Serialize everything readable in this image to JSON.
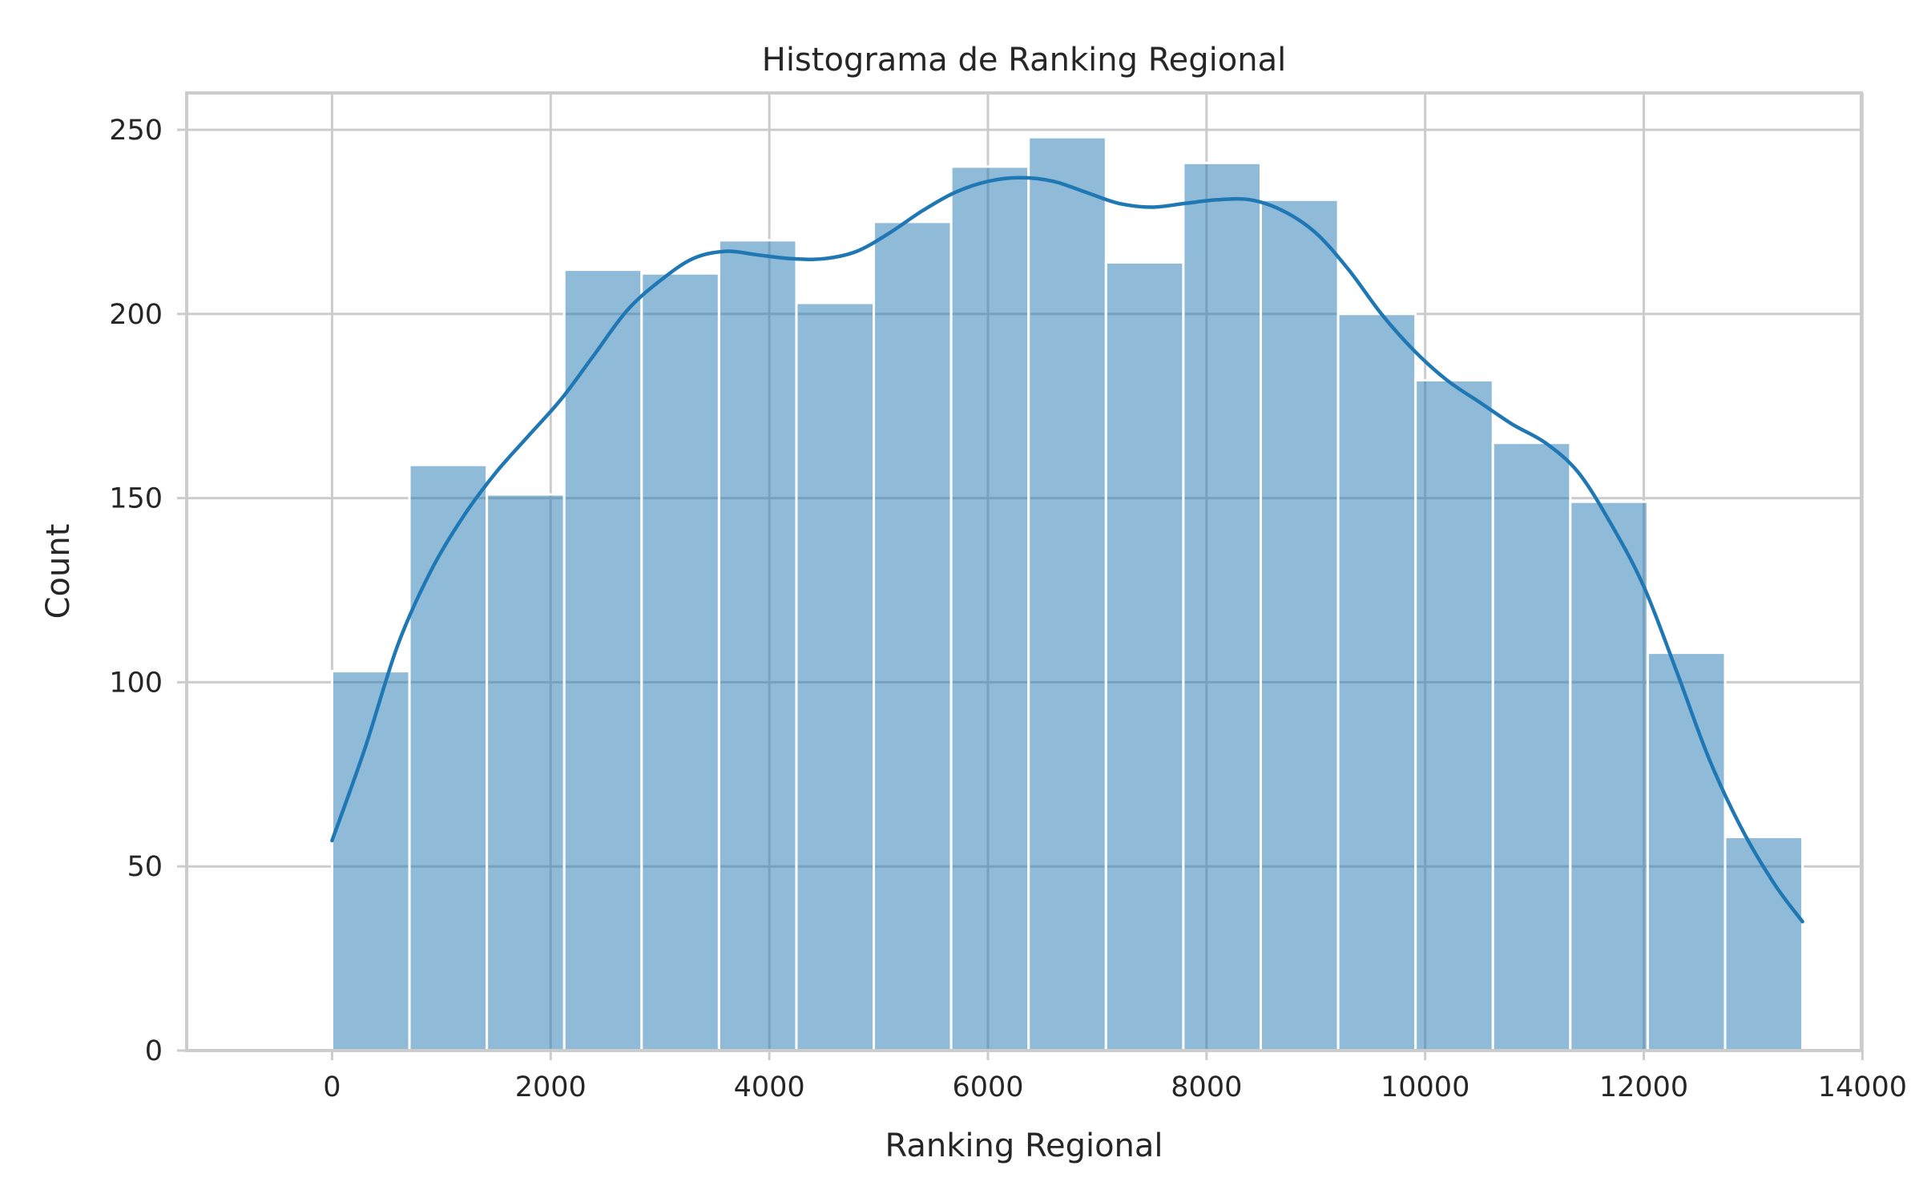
{
  "chart_data": {
    "type": "bar",
    "title": "Histograma de Ranking Regional",
    "xlabel": "Ranking Regional",
    "ylabel": "Count",
    "xlim": [
      -1330,
      13990
    ],
    "ylim": [
      0,
      260
    ],
    "xticks": [
      0,
      2000,
      4000,
      6000,
      8000,
      10000,
      12000,
      14000
    ],
    "yticks": [
      0,
      50,
      100,
      150,
      200,
      250
    ],
    "grid": true,
    "bin_edges": [
      0,
      708,
      1416,
      2124,
      2832,
      3540,
      4248,
      4956,
      5664,
      6372,
      7080,
      7788,
      8496,
      9204,
      9912,
      10620,
      11328,
      12036,
      12744,
      13452
    ],
    "values": [
      103,
      159,
      151,
      212,
      211,
      220,
      203,
      225,
      240,
      248,
      214,
      241,
      231,
      200,
      182,
      165,
      149,
      108,
      58
    ],
    "series": [
      {
        "type": "kde",
        "x": [
          0,
          300,
          600,
          900,
          1200,
          1500,
          1800,
          2100,
          2400,
          2700,
          3000,
          3300,
          3600,
          3900,
          4200,
          4500,
          4800,
          5100,
          5400,
          5700,
          6000,
          6300,
          6600,
          6900,
          7200,
          7500,
          7800,
          8100,
          8400,
          8700,
          9000,
          9300,
          9600,
          9900,
          10200,
          10500,
          10800,
          11100,
          11400,
          11700,
          12000,
          12300,
          12600,
          12900,
          13200,
          13452
        ],
        "y": [
          57,
          82,
          110,
          130,
          145,
          157,
          167,
          177,
          189,
          201,
          209,
          215,
          217,
          216,
          215,
          215,
          217,
          222,
          228,
          233,
          236,
          237,
          236,
          233,
          230,
          229,
          230,
          231,
          231,
          228,
          222,
          212,
          200,
          190,
          182,
          176,
          170,
          165,
          157,
          143,
          126,
          103,
          79,
          60,
          45,
          35
        ]
      }
    ]
  }
}
